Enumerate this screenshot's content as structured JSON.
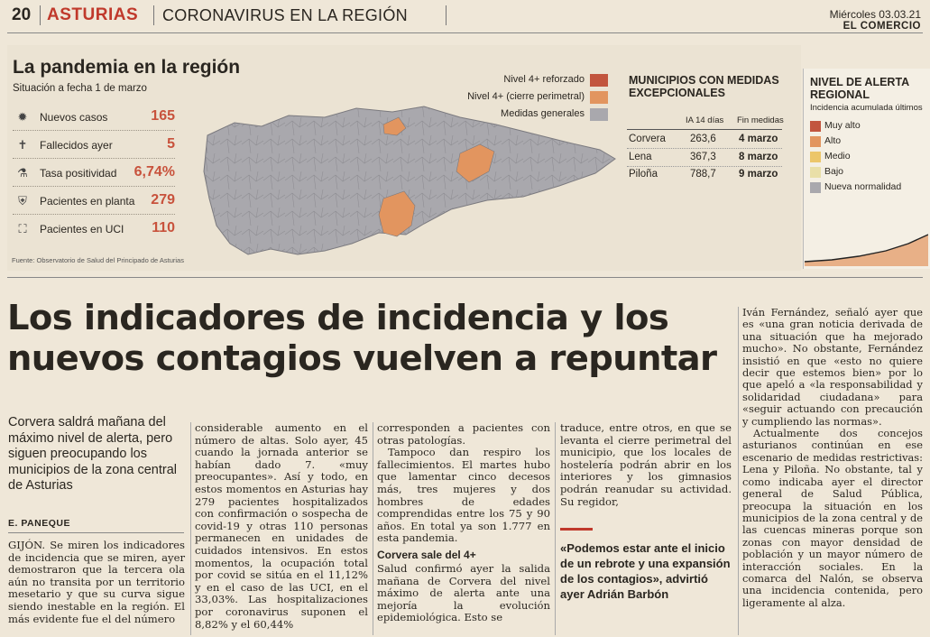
{
  "header": {
    "page_number": "20",
    "section": "ASTURIAS",
    "topic": "CORONAVIRUS EN LA REGIÓN",
    "date": "Miércoles 03.03.21",
    "newspaper": "EL COMERCIO"
  },
  "infographic": {
    "title": "La pandemia en la región",
    "subtitle": "Situación a fecha 1 de marzo",
    "stats": [
      {
        "label": "Nuevos casos",
        "value": "165",
        "icon": "virus-icon"
      },
      {
        "label": "Fallecidos ayer",
        "value": "5",
        "icon": "cross-icon"
      },
      {
        "label": "Tasa positividad",
        "value": "6,74%",
        "icon": "test-tube-icon"
      },
      {
        "label": "Pacientes en planta",
        "value": "279",
        "icon": "hospital-bed-icon"
      },
      {
        "label": "Pacientes en UCI",
        "value": "110",
        "icon": "icu-bed-icon"
      }
    ],
    "source": "Fuente: Observatorio de Salud del Principado de Asturias",
    "map_legend": [
      {
        "label": "Nivel 4+ reforzado",
        "color": "#c2553e"
      },
      {
        "label": "Nivel 4+ (cierre perimetral)",
        "color": "#e2955f"
      },
      {
        "label": "Medidas generales",
        "color": "#a9a8ad"
      }
    ],
    "municipalities": {
      "title": "MUNICIPIOS CON MEDIDAS EXCEPCIONALES",
      "headers": [
        "IA 14 días",
        "Fin medidas"
      ],
      "rows": [
        {
          "name": "Corvera",
          "ia": "263,6",
          "end": "4 marzo"
        },
        {
          "name": "Lena",
          "ia": "367,3",
          "end": "8 marzo"
        },
        {
          "name": "Piloña",
          "ia": "788,7",
          "end": "9 marzo"
        }
      ]
    },
    "alert": {
      "title": "NIVEL DE ALERTA REGIONAL",
      "subtitle": "Incidencia acumulada últimos",
      "levels": [
        {
          "label": "Muy alto",
          "color": "#c2553e"
        },
        {
          "label": "Alto",
          "color": "#e2955f"
        },
        {
          "label": "Medio",
          "color": "#ecc66a"
        },
        {
          "label": "Bajo",
          "color": "#e9dfa8"
        },
        {
          "label": "Nueva normalidad",
          "color": "#a9a8ad"
        }
      ]
    }
  },
  "article": {
    "headline": "Los indicadores de incidencia y los nuevos contagios vuelven a repuntar",
    "deck": "Corvera saldrá mañana del máximo nivel de alerta, pero siguen preocupando los municipios de la zona central de Asturias",
    "author": "E. PANEQUE",
    "col1": "GIJÓN. Se miren los indicadores de incidencia que se miren, ayer demostraron que la tercera ola aún no transita por un territorio mesetario y que su curva sigue siendo inestable en la región. El más evidente fue el del número",
    "col2": "considerable aumento en el número de altas. Solo ayer, 45 cuando la jornada anterior se habían dado 7. «muy preocupantes». Así y todo, en estos momentos en Asturias hay 279 pacientes hospitalizados con confirmación o sospecha de covid-19 y otras 110 personas permanecen en unidades de cuidados intensivos. En estos momentos, la ocupación total por covid se sitúa en el 11,12% y en el caso de las UCI, en el 33,03%. Las hospitalizaciones por coronavirus suponen el 8,82% y el 60,44%",
    "col3a": "corresponden a pacientes con otras patologías.",
    "col3b": "Tampoco dan respiro los fallecimientos. El martes hubo que lamentar cinco decesos más, tres mujeres y dos hombres de edades comprendidas entre los 75 y 90 años. En total ya son 1.777 en esta pandemia.",
    "col3_subhead": "Corvera sale del 4+",
    "col3c": "Salud confirmó ayer la salida mañana de Corvera del nivel máximo de alerta ante una mejoría la evolución epidemiológica. Esto se",
    "col4": "traduce, entre otros, en que se levanta el cierre perimetral del municipio, que los locales de hostelería podrán abrir en los interiores y los gimnasios podrán reanudar su actividad. Su regidor,",
    "quote": "«Podemos estar ante el inicio de un rebrote y una expansión de los contagios», advirtió ayer Adrián Barbón",
    "col5": "Iván Fernández, señaló ayer que es «una gran noticia derivada de una situación que ha mejorado mucho». No obstante, Fernández insistió en que «esto no quiere decir que estemos bien» por lo que apeló a «la responsabilidad y solidaridad ciudadana» para «seguir actuando con precaución y cumpliendo las normas».",
    "col5b": "Actualmente dos concejos asturianos continúan en ese escenario de medidas restrictivas: Lena y Piloña. No obstante, tal y como indicaba ayer el director general de Salud Pública, preocupa la situación en los municipios de la zona central y de las cuencas mineras porque son zonas con mayor densidad de población y un mayor número de interacción sociales. En la comarca del Nalón, se observa una incidencia contenida, pero ligeramente al alza."
  }
}
